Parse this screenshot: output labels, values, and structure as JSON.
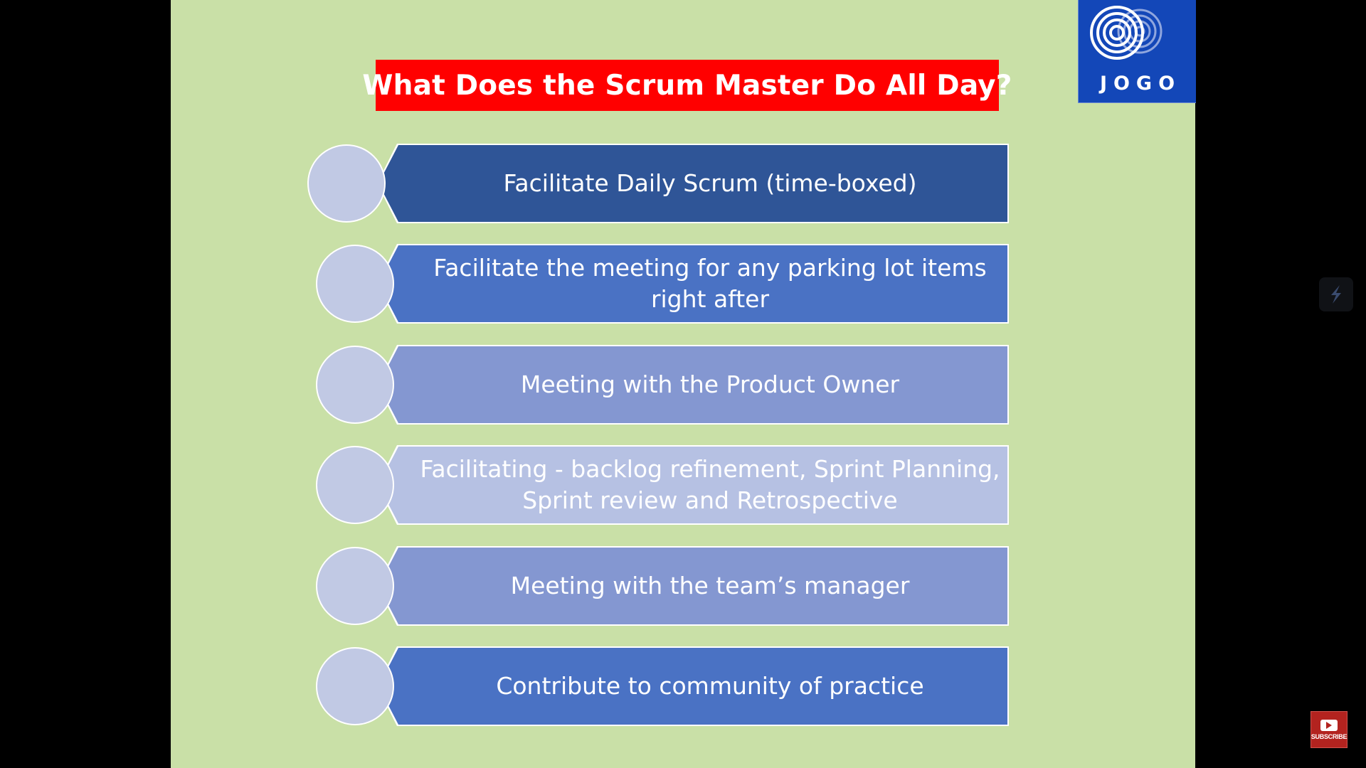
{
  "slide": {
    "title": "What Does the Scrum Master Do All Day?",
    "logo_text": "JOGO",
    "items": [
      {
        "text": "Facilitate Daily Scrum (time-boxed)",
        "color": "#2f5597"
      },
      {
        "text": "Facilitate the meeting for any parking lot items right after",
        "color": "#4a72c4"
      },
      {
        "text": "Meeting with the Product Owner",
        "color": "#8497d1"
      },
      {
        "text": "Facilitating -  backlog refinement, Sprint Planning, Sprint review and Retrospective",
        "color": "#b6c1e3"
      },
      {
        "text": "Meeting with the team’s manager",
        "color": "#8497d1"
      },
      {
        "text": "Contribute to community of practice",
        "color": "#4a72c4"
      }
    ]
  },
  "overlay": {
    "subscribe_label": "SUBSCRIBE",
    "side_icon": "lightning-icon"
  },
  "colors": {
    "background": "#c9e0a7",
    "title_bg": "#ff0000",
    "logo_bg": "#1347b8",
    "circle": "#c1c9e4"
  }
}
